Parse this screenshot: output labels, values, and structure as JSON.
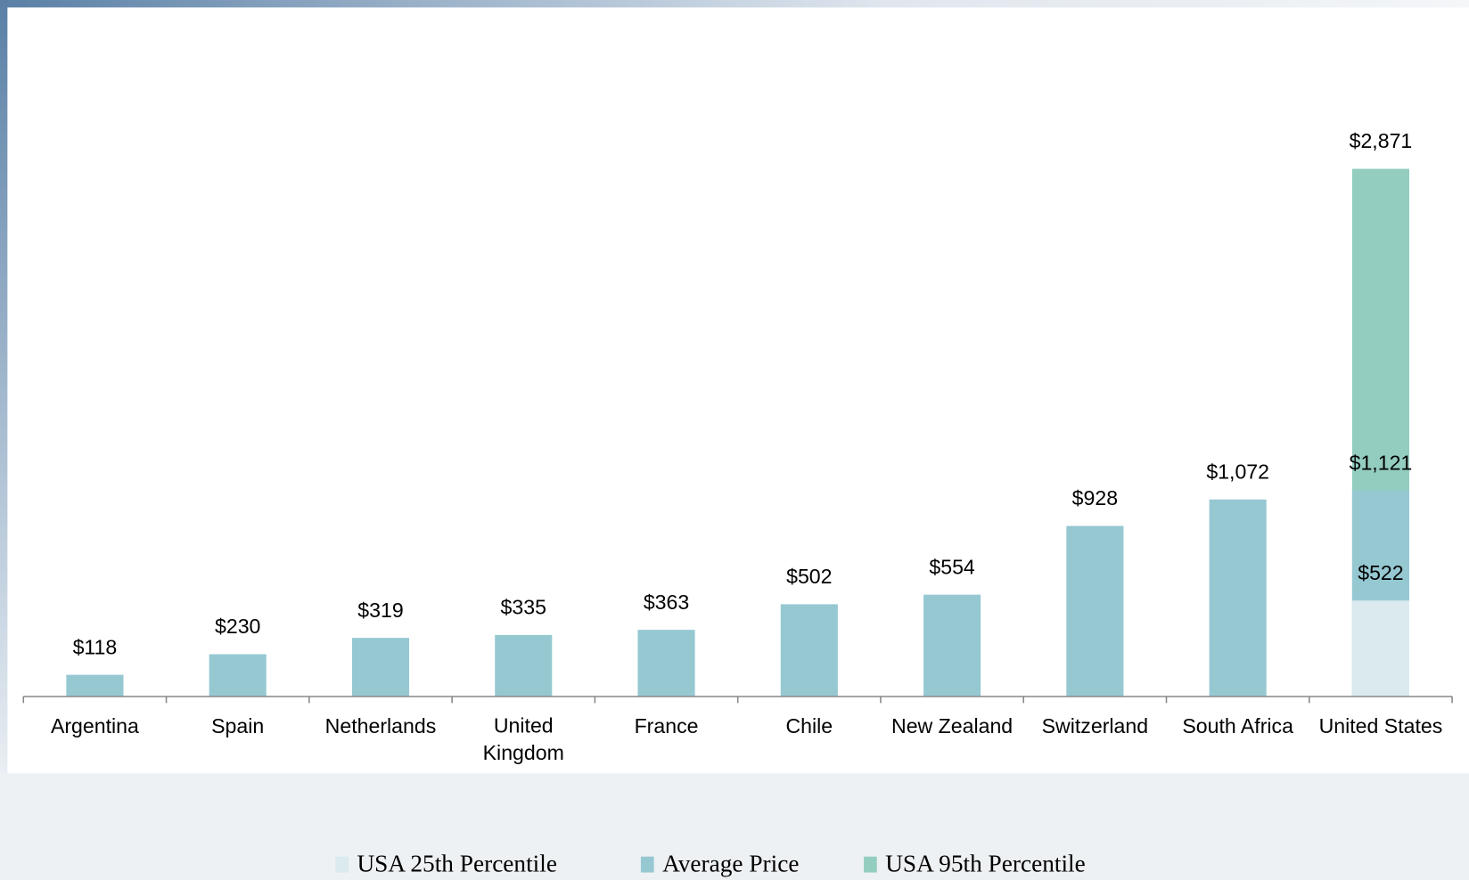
{
  "chart_data": {
    "type": "bar",
    "categories": [
      "Argentina",
      "Spain",
      "Netherlands",
      "United Kingdom",
      "France",
      "Chile",
      "New Zealand",
      "Switzerland",
      "South Africa",
      "United States"
    ],
    "series": [
      {
        "name": "USA 25th Percentile",
        "color": "#daeaef",
        "values": [
          null,
          null,
          null,
          null,
          null,
          null,
          null,
          null,
          null,
          522
        ],
        "value_labels": [
          null,
          null,
          null,
          null,
          null,
          null,
          null,
          null,
          null,
          "$522"
        ]
      },
      {
        "name": "Average Price",
        "color": "#96c8d2",
        "values": [
          118,
          230,
          319,
          335,
          363,
          502,
          554,
          928,
          1072,
          1121
        ],
        "value_labels": [
          "$118",
          "$230",
          "$319",
          "$335",
          "$363",
          "$502",
          "$554",
          "$928",
          "$1,072",
          "$1,121"
        ]
      },
      {
        "name": "USA  95th Percentile",
        "color": "#93cdc0",
        "values": [
          null,
          null,
          null,
          null,
          null,
          null,
          null,
          null,
          null,
          2871
        ],
        "value_labels": [
          null,
          null,
          null,
          null,
          null,
          null,
          null,
          null,
          null,
          "$2,871"
        ]
      }
    ],
    "ylim": [
      0,
      3000
    ]
  }
}
